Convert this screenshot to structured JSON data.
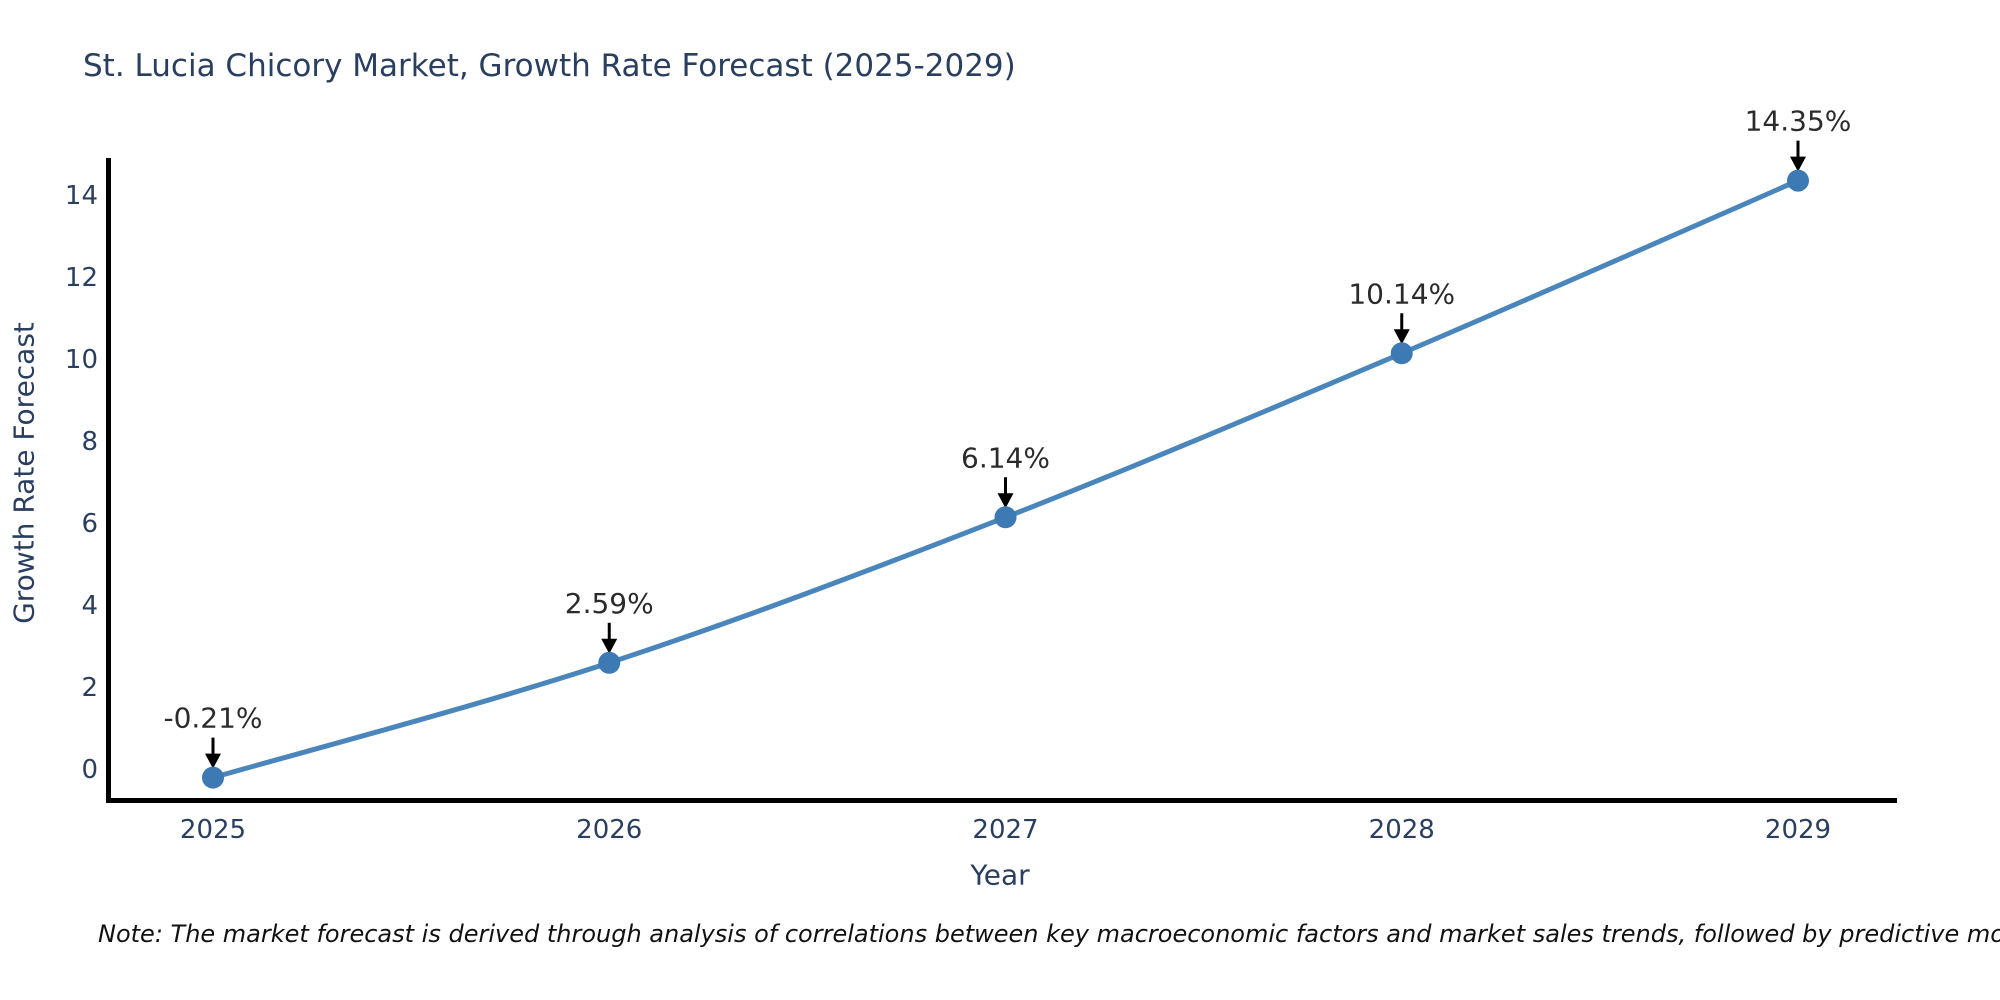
{
  "chart_data": {
    "type": "line",
    "title": "St. Lucia Chicory Market, Growth Rate Forecast (2025-2029)",
    "xlabel": "Year",
    "ylabel": "Growth Rate Forecast",
    "categories": [
      2025,
      2026,
      2027,
      2028,
      2029
    ],
    "values": [
      -0.21,
      2.59,
      6.14,
      10.14,
      14.35
    ],
    "point_labels": [
      "-0.21%",
      "2.59%",
      "6.14%",
      "10.14%",
      "14.35%"
    ],
    "yticks": [
      0,
      2,
      4,
      6,
      8,
      10,
      12,
      14
    ],
    "ylim": [
      -0.9,
      15.1
    ],
    "grid": false,
    "legend_position": "none",
    "line_color": "#4a86bc",
    "marker_color": "#3d79b2",
    "annotation_color": "#2b2b2b",
    "arrow_color": "#000000",
    "axis_text_color": "#2a3f5f",
    "spine_color": "#000000",
    "note": "Note: The market forecast is derived through analysis of correlations between key macroeconomic factors and market sales trends, followed by predictive modeling to project future sales"
  }
}
